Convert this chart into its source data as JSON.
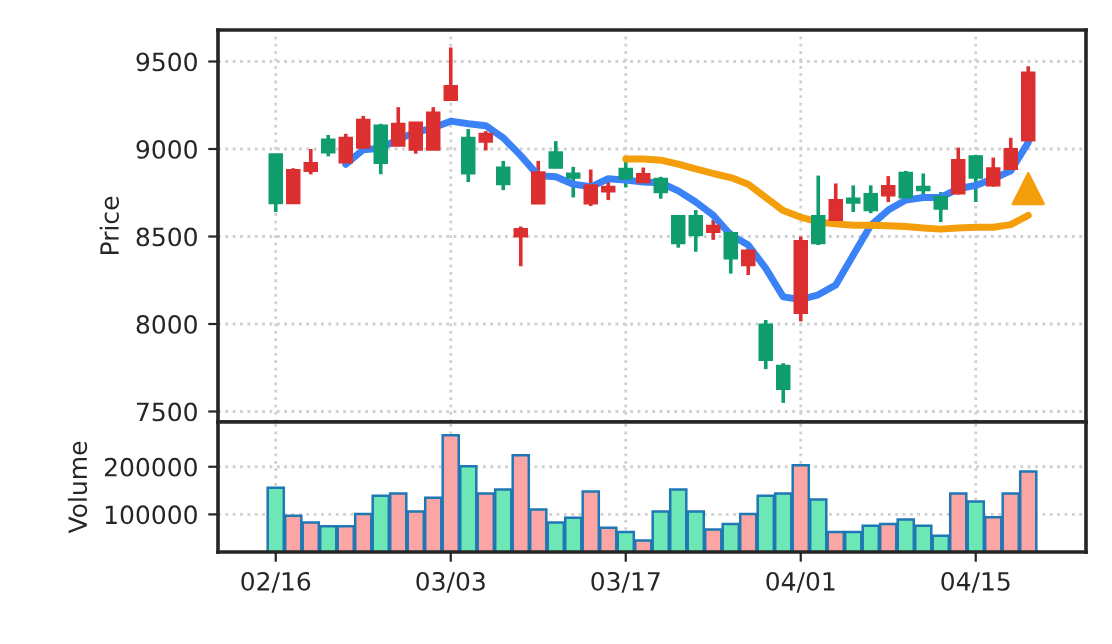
{
  "chart_data": [
    {
      "type": "candlestick",
      "ylabel": "Price",
      "categories": [
        null,
        null,
        null,
        null,
        null,
        null,
        null,
        null,
        null,
        null,
        null,
        null,
        null,
        null,
        null,
        null,
        null,
        null,
        null,
        null,
        null,
        null,
        null,
        null,
        null,
        null,
        null,
        null,
        null,
        null,
        null,
        null,
        null,
        null,
        null,
        null,
        null,
        null,
        null,
        null,
        null,
        null,
        null,
        null
      ],
      "ohlc": [
        [
          8690,
          8970,
          8640,
          8970
        ],
        [
          8880,
          8890,
          8690,
          8690
        ],
        [
          8920,
          9000,
          8855,
          8875
        ],
        [
          8980,
          9080,
          8958,
          9053
        ],
        [
          9064,
          9087,
          8920,
          8924
        ],
        [
          9167,
          9189,
          9000,
          9008
        ],
        [
          8920,
          9144,
          8856,
          9133
        ],
        [
          9144,
          9239,
          9015,
          9019
        ],
        [
          9151,
          9155,
          8973,
          8996
        ],
        [
          9208,
          9239,
          8996,
          8996
        ],
        [
          9360,
          9580,
          9275,
          9280
        ],
        [
          8860,
          9114,
          8811,
          9064
        ],
        [
          9087,
          9102,
          8992,
          9042
        ],
        [
          8799,
          8932,
          8765,
          8894
        ],
        [
          8542,
          8557,
          8330,
          8500
        ],
        [
          8867,
          8932,
          8689,
          8689
        ],
        [
          8894,
          9045,
          8890,
          8981
        ],
        [
          8837,
          8898,
          8723,
          8860
        ],
        [
          8792,
          8883,
          8674,
          8689
        ],
        [
          8784,
          8830,
          8708,
          8758
        ],
        [
          8830,
          8932,
          8780,
          8886
        ],
        [
          8856,
          8894,
          8800,
          8811
        ],
        [
          8754,
          8841,
          8716,
          8830
        ],
        [
          8462,
          8620,
          8436,
          8617
        ],
        [
          8508,
          8651,
          8413,
          8617
        ],
        [
          8561,
          8595,
          8481,
          8527
        ],
        [
          8375,
          8534,
          8288,
          8519
        ],
        [
          8420,
          8447,
          8280,
          8337
        ],
        [
          7795,
          8023,
          7742,
          7996
        ],
        [
          7629,
          7776,
          7549,
          7761
        ],
        [
          8473,
          8500,
          8015,
          8064
        ],
        [
          8462,
          8848,
          8451,
          8617
        ],
        [
          8708,
          8803,
          8590,
          8595
        ],
        [
          8693,
          8792,
          8640,
          8716
        ],
        [
          8651,
          8792,
          8633,
          8742
        ],
        [
          8788,
          8845,
          8697,
          8735
        ],
        [
          8723,
          8875,
          8720,
          8864
        ],
        [
          8765,
          8860,
          8716,
          8784
        ],
        [
          8659,
          8754,
          8583,
          8727
        ],
        [
          8936,
          9008,
          8740,
          8746
        ],
        [
          8837,
          8966,
          8697,
          8958
        ],
        [
          8890,
          8951,
          8785,
          8792
        ],
        [
          9000,
          9064,
          8880,
          8886
        ],
        [
          9436,
          9473,
          9045,
          9049
        ]
      ],
      "colors": [
        "#0f9d6e",
        "#dc2f2f",
        "#dc2f2f",
        "#0f9d6e",
        "#dc2f2f",
        "#dc2f2f",
        "#0f9d6e",
        "#dc2f2f",
        "#dc2f2f",
        "#dc2f2f",
        "#dc2f2f",
        "#0f9d6e",
        "#dc2f2f",
        "#0f9d6e",
        "#dc2f2f",
        "#dc2f2f",
        "#0f9d6e",
        "#0f9d6e",
        "#dc2f2f",
        "#dc2f2f",
        "#0f9d6e",
        "#dc2f2f",
        "#0f9d6e",
        "#0f9d6e",
        "#0f9d6e",
        "#dc2f2f",
        "#0f9d6e",
        "#dc2f2f",
        "#0f9d6e",
        "#0f9d6e",
        "#dc2f2f",
        "#0f9d6e",
        "#dc2f2f",
        "#0f9d6e",
        "#0f9d6e",
        "#dc2f2f",
        "#0f9d6e",
        "#0f9d6e",
        "#0f9d6e",
        "#dc2f2f",
        "#0f9d6e",
        "#dc2f2f",
        "#dc2f2f",
        "#dc2f2f"
      ],
      "series": [
        {
          "type": "line",
          "color": "#3b82f6",
          "values": [
            null,
            null,
            null,
            null,
            8913,
            8996,
            9004,
            9057,
            9095,
            9121,
            9159,
            9144,
            9133,
            9064,
            8962,
            8848,
            8841,
            8799,
            8784,
            8830,
            8822,
            8811,
            8807,
            8761,
            8697,
            8621,
            8508,
            8451,
            8318,
            8155,
            8140,
            8167,
            8223,
            8394,
            8564,
            8651,
            8708,
            8723,
            8723,
            8773,
            8792,
            8830,
            8875,
            9038
          ]
        },
        {
          "type": "line",
          "color": "#f59e0b",
          "values": [
            null,
            null,
            null,
            null,
            null,
            null,
            null,
            null,
            null,
            null,
            null,
            null,
            null,
            null,
            null,
            null,
            null,
            null,
            null,
            null,
            8943,
            8943,
            8936,
            8913,
            8886,
            8860,
            8837,
            8799,
            8723,
            8648,
            8610,
            8583,
            8572,
            8564,
            8564,
            8561,
            8557,
            8549,
            8542,
            8549,
            8553,
            8553,
            8568,
            8621
          ]
        },
        {
          "type": "scatter",
          "marker": "triangle",
          "color": "#f59e0b",
          "values": [
            null,
            null,
            null,
            null,
            null,
            null,
            null,
            null,
            null,
            null,
            null,
            null,
            null,
            null,
            null,
            null,
            null,
            null,
            null,
            null,
            null,
            null,
            null,
            null,
            null,
            null,
            null,
            null,
            null,
            null,
            null,
            null,
            null,
            null,
            null,
            null,
            null,
            null,
            null,
            null,
            null,
            null,
            null,
            8773
          ]
        }
      ],
      "ylim": [
        7440,
        9680
      ],
      "yticks": [
        7500,
        8000,
        8500,
        9000,
        9500
      ],
      "grid": true,
      "tick_labels": "y"
    },
    {
      "type": "bar",
      "ylabel": "Volume",
      "categories": [
        "02/16",
        null,
        null,
        null,
        null,
        null,
        null,
        null,
        null,
        null,
        "03/03",
        null,
        null,
        null,
        null,
        null,
        null,
        null,
        null,
        null,
        "03/17",
        null,
        null,
        null,
        null,
        null,
        null,
        null,
        null,
        null,
        "04/01",
        null,
        null,
        null,
        null,
        null,
        null,
        null,
        null,
        null,
        "04/15",
        null,
        null,
        null
      ],
      "values": [
        156000,
        97000,
        83000,
        75000,
        75000,
        101000,
        139000,
        144000,
        106000,
        135000,
        266000,
        201000,
        144000,
        152000,
        224000,
        110000,
        83000,
        93000,
        148000,
        72000,
        63000,
        45000,
        106000,
        152000,
        106000,
        68000,
        80000,
        101000,
        139000,
        144000,
        203000,
        131000,
        63000,
        63000,
        76000,
        80000,
        89000,
        76000,
        55000,
        144000,
        127000,
        94000,
        144000,
        190000
      ],
      "colors": [
        "#6ee7b7",
        "#fca5a5",
        "#fca5a5",
        "#6ee7b7",
        "#fca5a5",
        "#fca5a5",
        "#6ee7b7",
        "#fca5a5",
        "#fca5a5",
        "#fca5a5",
        "#fca5a5",
        "#6ee7b7",
        "#fca5a5",
        "#6ee7b7",
        "#fca5a5",
        "#fca5a5",
        "#6ee7b7",
        "#6ee7b7",
        "#fca5a5",
        "#fca5a5",
        "#6ee7b7",
        "#fca5a5",
        "#6ee7b7",
        "#6ee7b7",
        "#6ee7b7",
        "#fca5a5",
        "#6ee7b7",
        "#fca5a5",
        "#6ee7b7",
        "#6ee7b7",
        "#fca5a5",
        "#6ee7b7",
        "#fca5a5",
        "#6ee7b7",
        "#6ee7b7",
        "#fca5a5",
        "#6ee7b7",
        "#6ee7b7",
        "#6ee7b7",
        "#fca5a5",
        "#6ee7b7",
        "#fca5a5",
        "#fca5a5",
        "#fca5a5"
      ],
      "ylim": [
        21000,
        294000
      ],
      "yticks": [
        100000,
        200000
      ],
      "grid": true
    }
  ]
}
